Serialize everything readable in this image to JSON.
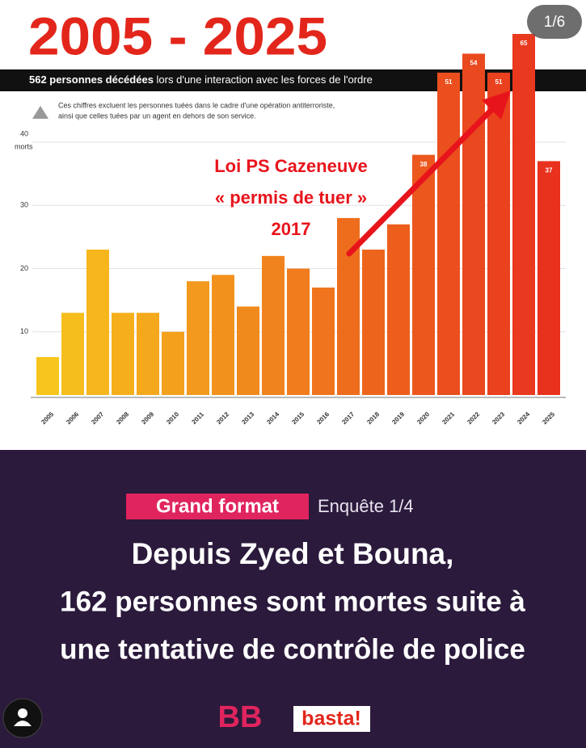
{
  "badge": "1/6",
  "chart_data": {
    "type": "bar",
    "title": "2005 - 2025",
    "subtitle_bold": "562 personnes décédées",
    "subtitle": "lors d'une interaction avec les forces de l'ordre",
    "note": [
      "Ces chiffres excluent les personnes tuées dans le cadre d'une opération antiterroriste,",
      "ainsi que celles tuées par un agent en dehors de son service."
    ],
    "y_unit": "morts",
    "categories": [
      "2005",
      "2006",
      "2007",
      "2008",
      "2009",
      "2010",
      "2011",
      "2012",
      "2013",
      "2014",
      "2015",
      "2016",
      "2017",
      "2018",
      "2019",
      "2020",
      "2021",
      "2022",
      "2023",
      "2024",
      "2025"
    ],
    "values": [
      6,
      13,
      23,
      13,
      13,
      10,
      18,
      19,
      14,
      22,
      20,
      17,
      28,
      23,
      27,
      38,
      51,
      54,
      51,
      65,
      37
    ],
    "value_labels": [
      null,
      null,
      null,
      null,
      null,
      null,
      null,
      null,
      null,
      null,
      null,
      null,
      null,
      null,
      null,
      "38",
      "51",
      "54",
      "51",
      "65",
      "37"
    ],
    "gradient": [
      "#f7c51c",
      "#e8321e"
    ],
    "ylim": [
      0,
      40
    ],
    "yticks": [
      10,
      20,
      30,
      40
    ],
    "grid": true,
    "annotation": [
      "Loi PS Cazeneuve",
      "« permis de tuer »",
      "2017"
    ]
  },
  "post": {
    "tag": "Grand format",
    "section": "Enquête 1/4",
    "headline": [
      "Depuis Zyed et Bouna,",
      "162 personnes sont mortes suite à",
      "une tentative de contrôle de police"
    ],
    "logo_left": "BB",
    "logo_right": "basta!"
  }
}
